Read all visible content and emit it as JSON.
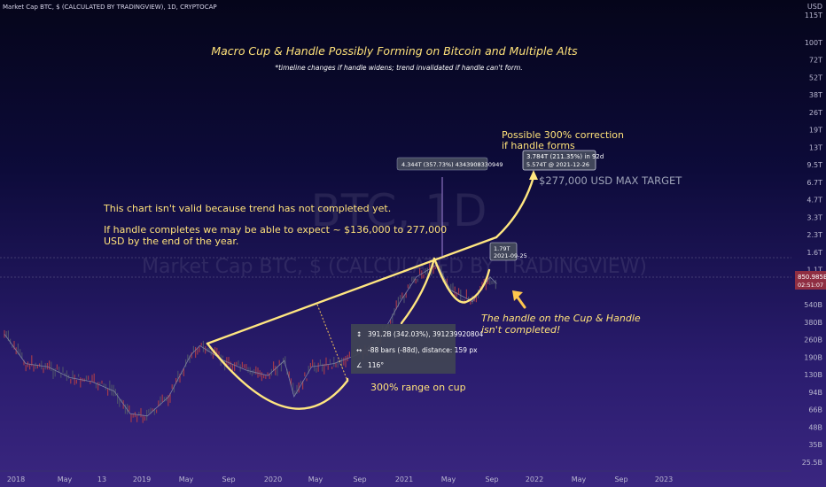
{
  "header": "Market Cap BTC, $ (CALCULATED BY TRADINGVIEW), 1D, CRYPTOCAP",
  "currency": "USD",
  "watermark": {
    "symbol": "BTC, 1D",
    "name": "Market Cap BTC, $ (CALCULATED BY TRADINGVIEW)"
  },
  "colors": {
    "accent": "#ffe680",
    "candle_up": "#4b4f6a",
    "candle_down": "#a13a4c",
    "price_badge": "#8f2e42",
    "box_bg": "#3f4354"
  },
  "chart_data": {
    "type": "line",
    "title": "Macro Cup & Handle Possibly Forming on Bitcoin and Multiple Alts",
    "subtitle": "*timeline changes if handle widens; trend invalidated if handle can't form.",
    "y_scale": "log",
    "y_tick_labels": [
      "115T",
      "100T",
      "72T",
      "52T",
      "38T",
      "26T",
      "19T",
      "13T",
      "9.5T",
      "6.7T",
      "4.7T",
      "3.3T",
      "2.3T",
      "1.6T",
      "1.1T",
      "850.985B",
      "540B",
      "380B",
      "260B",
      "190B",
      "130B",
      "94B",
      "66B",
      "48B",
      "35B",
      "25.5B"
    ],
    "x_tick_labels": [
      "2018",
      "May",
      "13",
      "2019",
      "May",
      "Sep",
      "2020",
      "May",
      "Sep",
      "2021",
      "May",
      "Sep",
      "2022",
      "May",
      "Sep",
      "2023"
    ],
    "last_price": {
      "value": "850.985B",
      "countdown": "02:51:07"
    },
    "series": [
      {
        "x": [
          "2018-01-01",
          "2018-03-01",
          "2018-05-01",
          "2018-07-01",
          "2018-09-01",
          "2018-11-01",
          "2018-12-15",
          "2019-02-01",
          "2019-04-01",
          "2019-06-01",
          "2019-06-26",
          "2019-09-01",
          "2019-11-01",
          "2020-01-01",
          "2020-02-15",
          "2020-03-13",
          "2020-05-01",
          "2020-07-01",
          "2020-09-01",
          "2020-11-01",
          "2021-01-01",
          "2021-02-15",
          "2021-04-14",
          "2021-05-20",
          "2021-07-20",
          "2021-09-07",
          "2021-09-25"
        ],
        "values": [
          300,
          170,
          160,
          130,
          120,
          100,
          65,
          62,
          90,
          200,
          240,
          180,
          150,
          135,
          180,
          90,
          160,
          170,
          200,
          260,
          560,
          900,
          1150,
          700,
          560,
          900,
          790
        ]
      }
    ],
    "annotations": [
      "4.344T (357.73%) 4343908330949",
      "3.784T (211.35%) in 92d",
      "5.574T @ 2021-12-26",
      "1.79T",
      "2021-09-25",
      "391.2B (342.03%), 391239920804",
      "-88 bars (-88d), distance: 159 px",
      "116°",
      "Possible 300% correction",
      "if handle forms",
      "$277,000 USD MAX TARGET",
      "This chart isn't valid because trend has not completed yet.",
      "If handle completes we may be able to expect ~ $136,000 to 277,000",
      "USD by the end of the year.",
      "The handle on the Cup & Handle",
      "isn't completed!",
      "300% range on cup"
    ]
  }
}
